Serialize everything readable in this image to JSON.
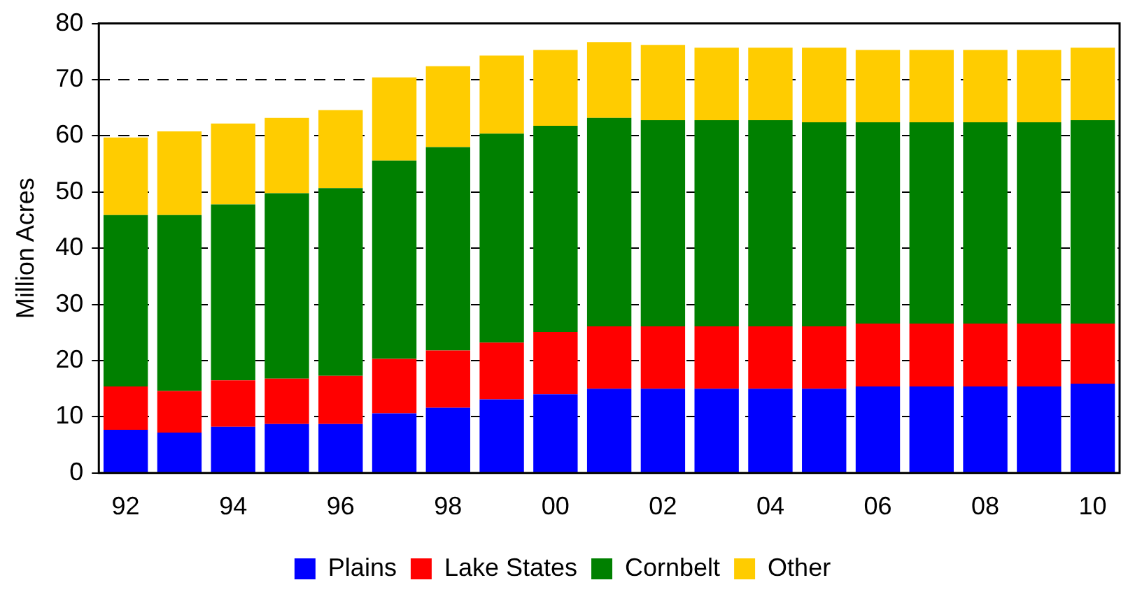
{
  "chart_data": {
    "type": "bar",
    "stacked": true,
    "ylabel": "Million Acres",
    "categories": [
      "92",
      null,
      "94",
      null,
      "96",
      null,
      "98",
      null,
      "00",
      null,
      "02",
      null,
      "04",
      null,
      "06",
      null,
      "08",
      null,
      "10"
    ],
    "series": [
      {
        "name": "Plains",
        "color": "#0000ff",
        "values": [
          7.7,
          7.2,
          8.2,
          8.7,
          8.7,
          10.6,
          11.6,
          13.1,
          14.0,
          15.0,
          15.0,
          15.0,
          15.0,
          15.0,
          15.4,
          15.4,
          15.4,
          15.4,
          15.9
        ]
      },
      {
        "name": "Lake States",
        "color": "#ff0000",
        "values": [
          7.7,
          7.4,
          8.3,
          8.1,
          8.6,
          9.7,
          10.2,
          10.1,
          11.1,
          11.1,
          11.1,
          11.1,
          11.1,
          11.1,
          11.2,
          11.2,
          11.2,
          11.2,
          10.7
        ]
      },
      {
        "name": "Cornbelt",
        "color": "#008000",
        "values": [
          30.5,
          31.3,
          31.3,
          33.0,
          33.4,
          35.3,
          36.2,
          37.2,
          36.7,
          37.1,
          36.7,
          36.7,
          36.7,
          36.3,
          35.8,
          35.8,
          35.8,
          35.8,
          36.2
        ]
      },
      {
        "name": "Other",
        "color": "#ffcc00",
        "values": [
          13.8,
          14.9,
          14.4,
          13.4,
          13.9,
          14.8,
          14.4,
          13.9,
          13.5,
          13.5,
          13.4,
          12.9,
          12.9,
          13.3,
          12.9,
          12.9,
          12.9,
          12.9,
          12.9
        ]
      }
    ],
    "ylim": [
      0,
      80
    ],
    "yticks": [
      0,
      10,
      20,
      30,
      40,
      50,
      60,
      70,
      80
    ],
    "grid": "y",
    "legend": "bottom"
  }
}
